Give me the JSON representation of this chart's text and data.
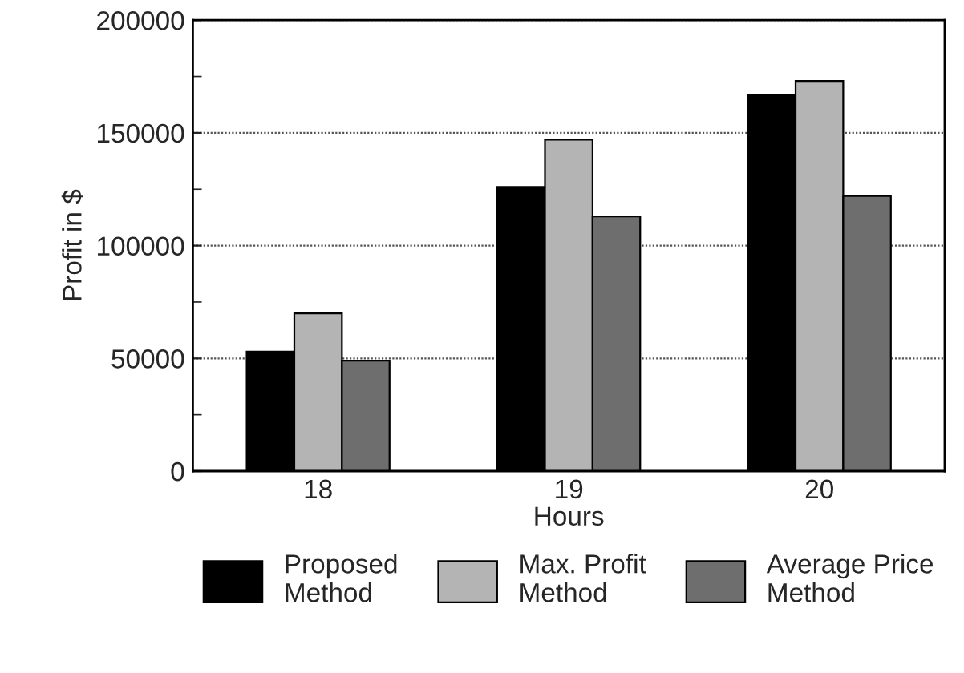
{
  "chart_data": {
    "type": "bar",
    "xlabel": "Hours",
    "ylabel": "Profit in $",
    "categories": [
      "18",
      "19",
      "20"
    ],
    "series": [
      {
        "name": "Proposed\nMethod",
        "color": "#000000",
        "values": [
          53000,
          126000,
          167000
        ]
      },
      {
        "name": "Max. Profit\nMethod",
        "color": "#b4b4b4",
        "values": [
          70000,
          147000,
          173000
        ]
      },
      {
        "name": "Average Price\nMethod",
        "color": "#6e6e6e",
        "values": [
          49000,
          113000,
          122000
        ]
      }
    ],
    "ylim": [
      0,
      200000
    ],
    "yticks": [
      0,
      50000,
      100000,
      150000,
      200000
    ],
    "grid": "y",
    "legend": "bottom"
  }
}
